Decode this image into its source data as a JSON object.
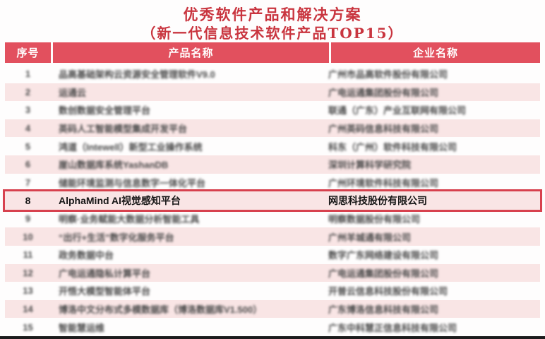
{
  "title": "优秀软件产品和解决方案",
  "subtitle": "（新一代信息技术软件产品TOP15）",
  "colors": {
    "title_red": "#c9353f",
    "header_bg": "#e2505e",
    "row_pink": "#f9e5e5",
    "highlight_border": "#d7414e",
    "bottom_bar": "#1c1c1c"
  },
  "table": {
    "columns": [
      "序号",
      "产品名称",
      "企业名称"
    ],
    "rows": [
      {
        "num": "1",
        "product": "品高基础架构云资源安全管理软件V9.0",
        "company": "广州市品高软件股份有限公司",
        "highlighted": false,
        "blurred": true
      },
      {
        "num": "2",
        "product": "运通云",
        "company": "广电运通集团股份有限公司",
        "highlighted": false,
        "blurred": true
      },
      {
        "num": "3",
        "product": "数创数据安全管理平台",
        "company": "联通（广东）产业互联网有限公司",
        "highlighted": false,
        "blurred": true
      },
      {
        "num": "4",
        "product": "英码人工智能模型集成开发平台",
        "company": "广州英码信息科技有限公司",
        "highlighted": false,
        "blurred": true
      },
      {
        "num": "5",
        "product": "鸿道（Intewell）新型工业操作系统",
        "company": "科东（广州）软件科技有限公司",
        "highlighted": false,
        "blurred": true
      },
      {
        "num": "6",
        "product": "崖山数据库系统YashanDB",
        "company": "深圳计算科学研究院",
        "highlighted": false,
        "blurred": true
      },
      {
        "num": "7",
        "product": "储能环境监测与信息数字一体化平台",
        "company": "广州环境软件科技有限公司",
        "highlighted": false,
        "blurred": true
      },
      {
        "num": "8",
        "product": "AlphaMind AI视觉感知平台",
        "company": "网思科技股份有限公司",
        "highlighted": true,
        "blurred": false
      },
      {
        "num": "9",
        "product": "明察·业务赋能大数据分析智能工具",
        "company": "明察数据股份有限公司",
        "highlighted": false,
        "blurred": true
      },
      {
        "num": "10",
        "product": "“出行+生活”数字化服务平台",
        "company": "广州羊城通有限公司",
        "highlighted": false,
        "blurred": true
      },
      {
        "num": "11",
        "product": "政务数据中台",
        "company": "数字广东网络建设有限公司",
        "highlighted": false,
        "blurred": true
      },
      {
        "num": "12",
        "product": "广电运通隐私计算平台",
        "company": "广电运通集团股份有限公司",
        "highlighted": false,
        "blurred": true
      },
      {
        "num": "13",
        "product": "开悟大模型智能体平台",
        "company": "开普云信息科技股份有限公司",
        "highlighted": false,
        "blurred": true
      },
      {
        "num": "14",
        "product": "博洛中文分布式多模数据库（博洛数据库V1.500）",
        "company": "广东博洛信息科技有限公司",
        "highlighted": false,
        "blurred": true
      },
      {
        "num": "15",
        "product": "智能慧运维",
        "company": "广东中科慧正信息科技有限公司",
        "highlighted": false,
        "blurred": true
      }
    ]
  }
}
